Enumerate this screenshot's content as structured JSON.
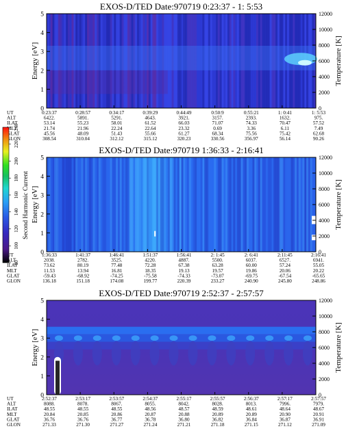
{
  "panels": [
    {
      "title": "EXOS-D/TED   Date:970719  0:23:37 -  1: 5:53",
      "ylabel": "Energy [eV]",
      "y2label": "Temperature [K]",
      "yticks": [
        "0",
        "1",
        "2",
        "3",
        "4",
        "5"
      ],
      "y2ticks": [
        "0",
        "2000",
        "4000",
        "6000",
        "8000",
        "10000",
        "12000"
      ],
      "row_labels": [
        "UT",
        "ALT",
        "ILAT",
        "MLT",
        "GLAT",
        "GLON"
      ],
      "columns": [
        [
          "0:23:37",
          "6422.",
          "53.14",
          "21.74",
          "45.56",
          "308.54"
        ],
        [
          "0:28:57",
          "5891.",
          "55.23",
          "21.96",
          "48.09",
          "310.04"
        ],
        [
          "0:34:17",
          "5291.",
          "58.01",
          "22.24",
          "51.43",
          "312.12"
        ],
        [
          "0:39:29",
          "4643.",
          "61.52",
          "22.64",
          "55.66",
          "315.12"
        ],
        [
          "0:44:49",
          "3921.",
          "66.03",
          "23.32",
          "61.27",
          "320.23"
        ],
        [
          "0:50:9",
          "3157.",
          "71.07",
          "0.69",
          "68.34",
          "330.56"
        ],
        [
          "0:55:21",
          "2393.",
          "74.33",
          "3.36",
          "75.56",
          "356.97"
        ],
        [
          "1: 0:41",
          "1632.",
          "70.47",
          "6.11",
          "75.42",
          "56.14"
        ],
        [
          "1: 5:53",
          "975.",
          "57.52",
          "7.49",
          "62.68",
          "90.26"
        ]
      ]
    },
    {
      "title": "EXOS-D/TED   Date:970719  1:36:33 -  2:16:41",
      "ylabel": "Energy [eV]",
      "y2label": "Temperature [K]",
      "yticks": [
        "0",
        "1",
        "2",
        "3",
        "4",
        "5"
      ],
      "y2ticks": [
        "0",
        "2000",
        "4000",
        "6000",
        "8000",
        "10000",
        "12000"
      ],
      "row_labels": [
        "UT",
        "ALT",
        "ILAT",
        "MLT",
        "GLAT",
        "GLON"
      ],
      "columns": [
        [
          "1:36:33",
          "2038.",
          "73.62",
          "11.53",
          "-59.43",
          "136.18"
        ],
        [
          "1:41:37",
          "2782.",
          "80.19",
          "13.94",
          "-68.92",
          "151.18"
        ],
        [
          "1:46:41",
          "3525.",
          "77.48",
          "16.81",
          "-74.25",
          "174.08"
        ],
        [
          "1:51:37",
          "4220.",
          "72.28",
          "18.35",
          "-75.58",
          "199.77"
        ],
        [
          "1:56:41",
          "4887.",
          "67.38",
          "19.13",
          "-74.33",
          "220.39"
        ],
        [
          "2: 1:45",
          "5500.",
          "63.28",
          "19.57",
          "-73.07",
          "233.27"
        ],
        [
          "2: 6:41",
          "6037.",
          "60.00",
          "19.86",
          "-69.75",
          "240.90"
        ],
        [
          "2:11:45",
          "6527.",
          "57.24",
          "20.06",
          "-67.54",
          "245.80"
        ],
        [
          "2:16:41",
          "6941.",
          "55.05",
          "20.22",
          "-65.65",
          "248.86"
        ]
      ]
    },
    {
      "title": "EXOS-D/TED   Date:970719  2:52:37 -  2:57:57",
      "ylabel": "Energy [eV]",
      "y2label": "Temperature [K]",
      "yticks": [
        "0",
        "1",
        "2",
        "3",
        "4",
        "5"
      ],
      "y2ticks": [
        "0",
        "2000",
        "4000",
        "6000",
        "8000",
        "10000",
        "12000"
      ],
      "row_labels": [
        "UT",
        "ALT",
        "ILAT",
        "MLT",
        "GLAT",
        "GLON"
      ],
      "columns": [
        [
          "2:52:37",
          "8088.",
          "48.55",
          "20.84",
          "36.76",
          "271.33"
        ],
        [
          "2:53:17",
          "8078.",
          "48.55",
          "20.85",
          "36.76",
          "271.30"
        ],
        [
          "2:53:57",
          "8067.",
          "48.55",
          "20.86",
          "36.77",
          "271.27"
        ],
        [
          "2:54:37",
          "8055.",
          "48.56",
          "20.87",
          "36.78",
          "271.24"
        ],
        [
          "2:55:17",
          "8042.",
          "48.57",
          "20.88",
          "36.80",
          "271.21"
        ],
        [
          "2:55:57",
          "8028.",
          "48.59",
          "20.89",
          "36.82",
          "271.18"
        ],
        [
          "2:56:37",
          "8013.",
          "48.61",
          "20.89",
          "36.84",
          "271.15"
        ],
        [
          "2:57:17",
          "7996.",
          "48.64",
          "20.90",
          "36.87",
          "271.12"
        ],
        [
          "2:57:57",
          "7979.",
          "48.67",
          "20.91",
          "36.91",
          "271.09"
        ]
      ]
    }
  ],
  "colorbar": {
    "label": "Second Harmonic Current",
    "ticks": [
      "80",
      "100",
      "120",
      "140",
      "160",
      "180",
      "200",
      "220",
      "240"
    ],
    "colors": [
      "#000000",
      "#5a1890",
      "#3528c0",
      "#2b5be6",
      "#2a9bf5",
      "#1ed6d0",
      "#18c060",
      "#30e020",
      "#e8f020",
      "#f09010",
      "#ff1010"
    ]
  },
  "chart_data": [
    {
      "type": "heatmap",
      "title": "EXOS-D/TED   Date:970719  0:23:37 -  1: 5:53",
      "xlabel": "UT",
      "ylabel": "Energy [eV]",
      "y2label": "Temperature [K]",
      "x": [
        "0:23:37",
        "0:28:57",
        "0:34:17",
        "0:39:29",
        "0:44:49",
        "0:50:9",
        "0:55:21",
        "1: 0:41",
        "1: 5:53"
      ],
      "ylim": [
        0,
        5
      ],
      "y2lim": [
        0,
        12000
      ]
    },
    {
      "type": "heatmap",
      "title": "EXOS-D/TED   Date:970719  1:36:33 -  2:16:41",
      "xlabel": "UT",
      "ylabel": "Energy [eV]",
      "y2label": "Temperature [K]",
      "x": [
        "1:36:33",
        "1:41:37",
        "1:46:41",
        "1:51:37",
        "1:56:41",
        "2: 1:45",
        "2: 6:41",
        "2:11:45",
        "2:16:41"
      ],
      "ylim": [
        0,
        5
      ],
      "y2lim": [
        0,
        12000
      ]
    },
    {
      "type": "heatmap",
      "title": "EXOS-D/TED   Date:970719  2:52:37 -  2:57:57",
      "xlabel": "UT",
      "ylabel": "Energy [eV]",
      "y2label": "Temperature [K]",
      "x": [
        "2:52:37",
        "2:53:17",
        "2:53:57",
        "2:54:37",
        "2:55:17",
        "2:55:57",
        "2:56:37",
        "2:57:17",
        "2:57:57"
      ],
      "ylim": [
        0,
        5
      ],
      "y2lim": [
        0,
        12000
      ]
    }
  ]
}
